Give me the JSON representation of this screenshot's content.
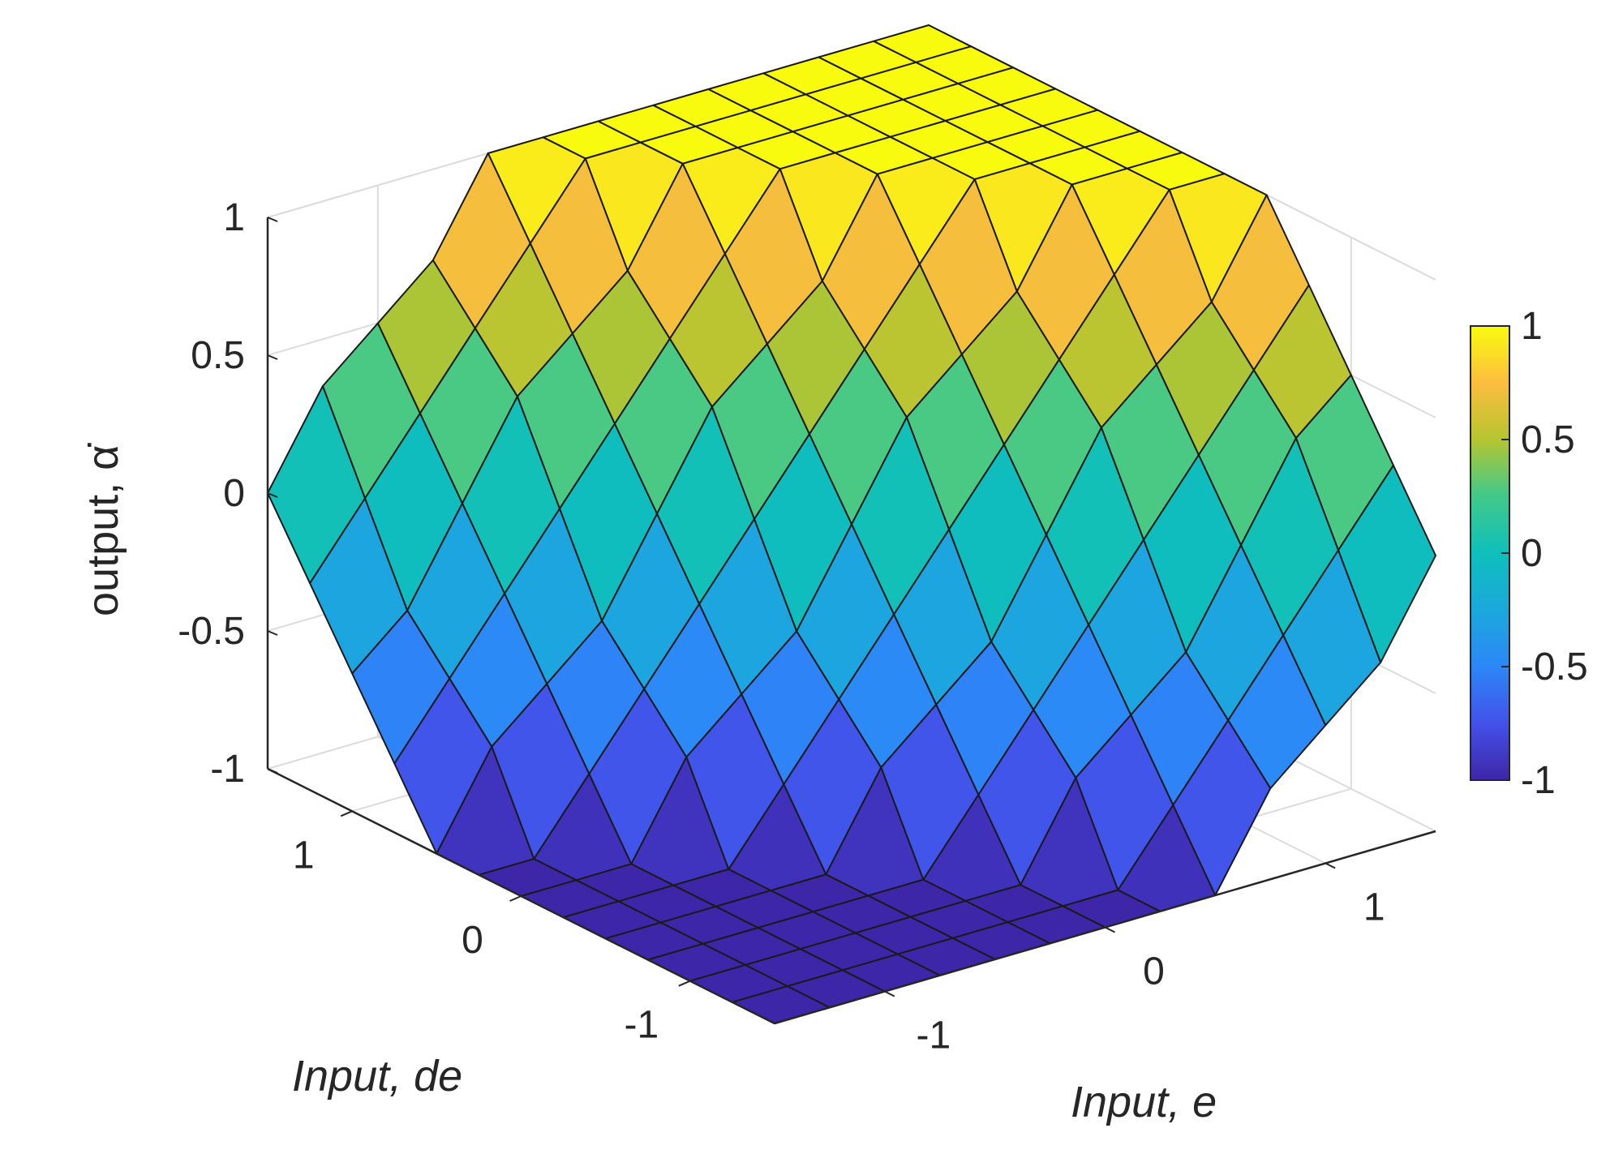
{
  "chart_data": {
    "type": "surface",
    "xlabel": "Input, e",
    "ylabel": "Input, de",
    "zlabel": "output, α̇",
    "x_range": [
      -1.5,
      1.5
    ],
    "y_range": [
      -1.5,
      1.5
    ],
    "zlim": [
      -1,
      1
    ],
    "grid": true,
    "colormap": "parula",
    "colorbar_position": "right",
    "x_ticks": [
      "-1",
      "0",
      "1"
    ],
    "y_ticks": [
      "-1",
      "0",
      "1"
    ],
    "z_ticks": [
      "-1",
      "-0.5",
      "0",
      "0.5",
      "1"
    ],
    "colorbar_ticks": [
      "-1",
      "-0.5",
      "0",
      "0.5",
      "1"
    ],
    "x_grid": [
      -1.5,
      -1.25,
      -1.0,
      -0.75,
      -0.5,
      -0.25,
      0,
      0.25,
      0.5,
      0.75,
      1.0,
      1.25,
      1.5
    ],
    "y_grid": [
      -1.5,
      -1.25,
      -1.0,
      -0.75,
      -0.5,
      -0.25,
      0,
      0.25,
      0.5,
      0.75,
      1.0,
      1.25,
      1.5
    ],
    "z_description": "output = clip(e + de, -1, 1), saturating at ±1 with small rule-base ripples"
  }
}
